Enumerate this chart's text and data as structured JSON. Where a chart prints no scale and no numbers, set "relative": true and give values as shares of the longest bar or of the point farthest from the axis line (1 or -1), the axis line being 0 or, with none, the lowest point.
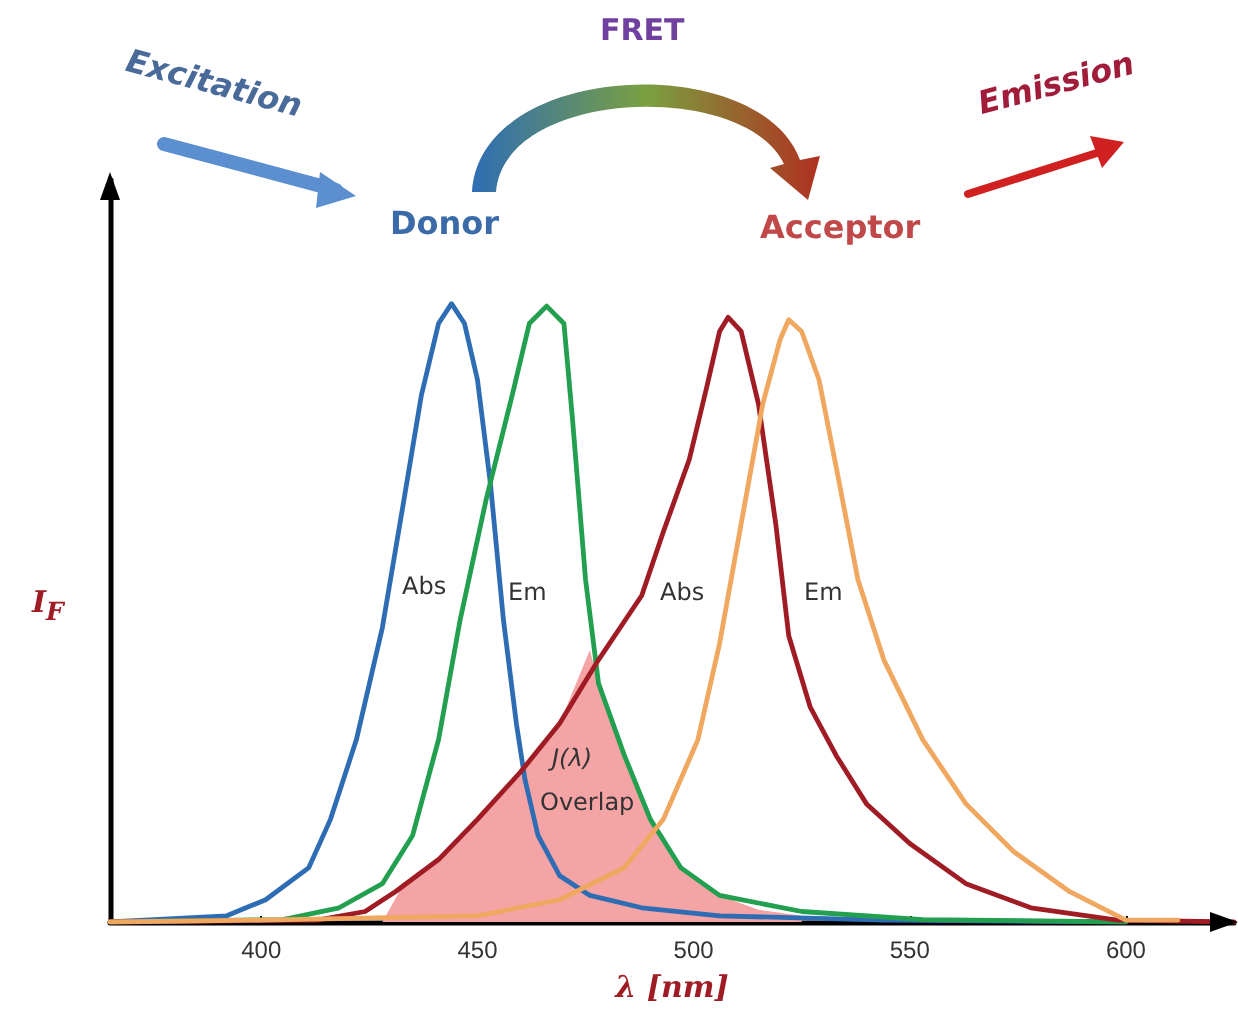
{
  "chart_data": {
    "type": "line",
    "relative": true,
    "xlabel": "λ [nm]",
    "ylabel": "I$_{F}$",
    "xlim": [
      365,
      625
    ],
    "xticks": [
      400,
      450,
      500,
      550,
      600
    ],
    "grid": false,
    "marker": "none",
    "line_style": "solid",
    "series": [
      {
        "type": "area",
        "color": "#f4a4a4",
        "x": [
          428,
          432,
          441,
          450,
          460,
          469,
          476,
          478,
          484,
          490,
          497,
          506,
          515,
          525
        ],
        "values": [
          0,
          0.05,
          0.1,
          0.166,
          0.243,
          0.321,
          0.44,
          0.386,
          0.269,
          0.166,
          0.088,
          0.043,
          0.02,
          0.01
        ]
      },
      {
        "color": "#2e6db4",
        "x": [
          365,
          392,
          401,
          411,
          416,
          422,
          428,
          433,
          437,
          441,
          444,
          447,
          450,
          453,
          456,
          459,
          461,
          464,
          469,
          476,
          488,
          506,
          544,
          600
        ],
        "values": [
          0,
          0.01,
          0.036,
          0.088,
          0.166,
          0.295,
          0.476,
          0.683,
          0.851,
          0.968,
          1,
          0.968,
          0.877,
          0.709,
          0.489,
          0.321,
          0.23,
          0.14,
          0.075,
          0.043,
          0.023,
          0.01,
          0.003,
          0
        ]
      },
      {
        "color": "#22a050",
        "x": [
          365,
          405,
          418,
          428,
          435,
          441,
          446,
          452,
          458,
          462,
          466,
          470,
          472,
          475,
          478,
          484,
          490,
          497,
          506,
          525,
          553,
          600
        ],
        "values": [
          0,
          0.004,
          0.023,
          0.062,
          0.14,
          0.295,
          0.489,
          0.683,
          0.851,
          0.968,
          0.996,
          0.968,
          0.812,
          0.554,
          0.386,
          0.269,
          0.166,
          0.088,
          0.043,
          0.017,
          0.004,
          0
        ]
      },
      {
        "color": "#a01c24",
        "x": [
          365,
          413,
          424,
          431,
          441,
          450,
          460,
          469,
          478,
          488,
          493,
          499,
          503,
          506,
          508,
          511,
          515,
          519,
          522,
          527,
          533,
          540,
          550,
          563,
          578,
          598,
          625
        ],
        "values": [
          0,
          0.003,
          0.017,
          0.049,
          0.101,
          0.166,
          0.243,
          0.321,
          0.424,
          0.528,
          0.631,
          0.748,
          0.864,
          0.955,
          0.978,
          0.955,
          0.838,
          0.644,
          0.463,
          0.347,
          0.269,
          0.191,
          0.127,
          0.062,
          0.023,
          0.003,
          0
        ]
      },
      {
        "color": "#f0a860",
        "x": [
          365,
          400,
          450,
          469,
          484,
          493,
          501,
          506,
          511,
          516,
          520,
          522,
          525,
          529,
          533,
          538,
          544,
          553,
          563,
          574,
          587,
          600,
          612
        ],
        "values": [
          0,
          0.003,
          0.01,
          0.036,
          0.088,
          0.166,
          0.295,
          0.45,
          0.644,
          0.838,
          0.942,
          0.974,
          0.955,
          0.877,
          0.735,
          0.554,
          0.424,
          0.295,
          0.191,
          0.114,
          0.049,
          0.003,
          0.003
        ]
      }
    ],
    "annotations": [
      "Excitation",
      "FRET",
      "Donor",
      "Acceptor",
      "Emission",
      "Abs",
      "Em",
      "Abs",
      "Em",
      "J(λ)",
      "Overlap"
    ]
  }
}
